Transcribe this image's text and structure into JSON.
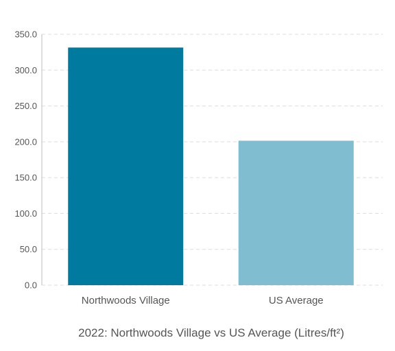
{
  "chart_data": {
    "type": "bar",
    "title": "2022: Northwoods Village vs US Average (Litres/ft²)",
    "xlabel": "",
    "ylabel": "",
    "categories": [
      "Northwoods Village",
      "US Average"
    ],
    "values": [
      331.5,
      201.5
    ],
    "colors": [
      "#007a9e",
      "#80bdd0"
    ],
    "ylim": [
      0,
      350
    ],
    "yticks": [
      "0.0",
      "50.0",
      "100.0",
      "150.0",
      "200.0",
      "250.0",
      "300.0",
      "350.0"
    ],
    "grid": true,
    "legend": "none"
  }
}
